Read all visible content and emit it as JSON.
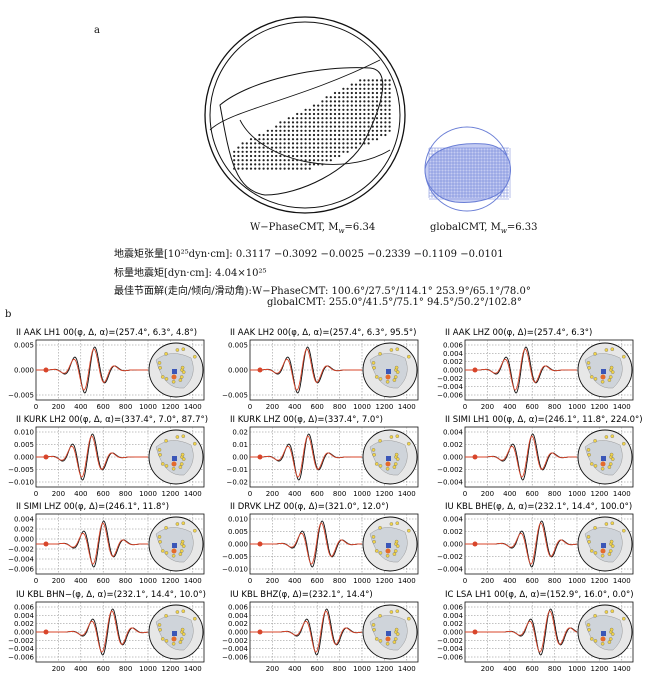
{
  "part_a": {
    "label": "a",
    "wphase_caption": "W−PhaseCMT, M",
    "wphase_sub": "w",
    "wphase_value": "=6.34",
    "global_caption": "globalCMT, M",
    "global_sub": "w",
    "global_value": "=6.33",
    "info_line1": "地震矩张量[10²⁵dyn·cm]: 0.3117   −0.3092   −0.0025  −0.2339  −0.1109  −0.0101",
    "info_line2": "标量地震矩[dyn·cm]: 4.04×10²⁵",
    "info_line3": "最佳节面解(走向/倾向/滑动角):W−PhaseCMT: 100.6°/27.5°/114.1°     253.9°/65.1°/78.0°",
    "info_line4": "globalCMT: 255.0°/41.5°/75.1°     94.5°/50.2°/102.8°"
  },
  "part_b": {
    "label": "b",
    "panels": [
      {
        "title": "II AAK LH1 00(φ, Δ, α)=(257.4°, 6.3°, 4.8°)",
        "ticks": [
          "0.005",
          "0.000",
          "−0.005"
        ],
        "amp": 0.0065,
        "center": 480
      },
      {
        "title": "II AAK LH2 00(φ, Δ, α)=(257.4°, 6.3°, 95.5°)",
        "ticks": [
          "0.005",
          "0.000",
          "−0.005"
        ],
        "amp": 0.0065,
        "center": 470
      },
      {
        "title": "II AAK LHZ 00(φ, Δ)=(257.4°, 6.3°)",
        "ticks": [
          "0.006",
          "0.004",
          "0.002",
          "0.000",
          "−0.002",
          "−0.004",
          "−0.006"
        ],
        "amp": 0.006,
        "center": 500
      },
      {
        "title": "II KURK LH2 00(φ, Δ, α)=(337.4°, 7.0°, 87.7°)",
        "ticks": [
          "0.010",
          "0.005",
          "0.000",
          "−0.005",
          "−0.010"
        ],
        "amp": 0.011,
        "center": 460
      },
      {
        "title": "II KURK LHZ 00(φ, Δ)=(337.4°, 7.0°)",
        "ticks": [
          "0.02",
          "0.01",
          "0.00",
          "−0.01",
          "−0.02"
        ],
        "amp": 0.02,
        "center": 480
      },
      {
        "title": "II SIMI LH1 00(φ, Δ, α)=(246.1°, 11.8°, 224.0°)",
        "ticks": [
          "0.004",
          "0.002",
          "0.000",
          "−0.002",
          "−0.004"
        ],
        "amp": 0.005,
        "center": 560
      },
      {
        "title": "II SIMI LHZ 00(φ, Δ)=(246.1°, 11.8°)",
        "ticks": [
          "0.004",
          "0.002",
          "0.000",
          "−0.002",
          "−0.004",
          "−0.006"
        ],
        "amp": 0.006,
        "center": 560
      },
      {
        "title": "II DRVK LHZ 00(φ, Δ)=(321.0°, 12.0°)",
        "ticks": [
          "0.010",
          "0.005",
          "0.000",
          "−0.005",
          "−0.010"
        ],
        "amp": 0.01,
        "center": 600
      },
      {
        "title": "IU KBL BHE(φ, Δ, α)=(232.1°, 14.4°, 100.0°)",
        "ticks": [
          "0.004",
          "0.002",
          "0.000",
          "−0.002",
          "−0.004"
        ],
        "amp": 0.005,
        "center": 640
      },
      {
        "title": "IU KBL BHN−(φ, Δ, α)=(232.1°, 14.4°, 10.0°)",
        "ticks": [
          "0.006",
          "0.004",
          "0.002",
          "0.000",
          "−0.002",
          "−0.004",
          "−0.006"
        ],
        "amp": 0.006,
        "center": 640
      },
      {
        "title": "IU KBL BHZ(φ, Δ)=(232.1°, 14.4°)",
        "ticks": [
          "0.006",
          "0.004",
          "0.002",
          "0.000",
          "−0.002",
          "−0.004",
          "−0.006"
        ],
        "amp": 0.006,
        "center": 640
      },
      {
        "title": "IC LSA LH1 00(φ, Δ, α)=(152.9°, 16.0°, 0.0°)",
        "ticks": [
          "0.006",
          "0.004",
          "0.002",
          "0.000",
          "−0.002",
          "−0.004",
          "−0.006"
        ],
        "amp": 0.006,
        "center": 720
      }
    ],
    "x_ticks_short": [
      "0",
      "200",
      "400",
      "600",
      "800",
      "1000",
      "1200",
      "1400"
    ],
    "x_ticks_bottom": [
      "200",
      "400",
      "600",
      "800",
      "1000",
      "1200",
      "1400"
    ]
  },
  "colors": {
    "observed": "#111111",
    "synthetic": "#d8452a",
    "global_beachball": "#6b7fd6"
  }
}
